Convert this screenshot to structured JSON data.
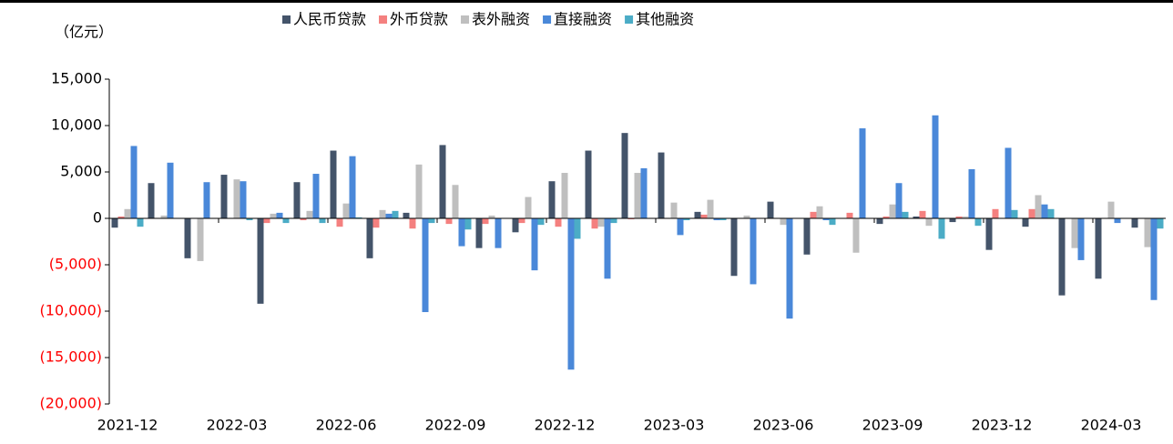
{
  "chart_data": {
    "type": "bar",
    "unit_label": "（亿元）",
    "categories": [
      "2021-12",
      null,
      null,
      "2022-03",
      null,
      null,
      "2022-06",
      null,
      null,
      "2022-09",
      null,
      null,
      "2022-12",
      null,
      null,
      "2023-03",
      null,
      null,
      "2023-06",
      null,
      null,
      "2023-09",
      null,
      null,
      "2023-12",
      null,
      null,
      "2024-03",
      null
    ],
    "series": [
      {
        "name": "人民币贷款",
        "color": "#44546a",
        "values": [
          -1000,
          3800,
          -4300,
          4700,
          -9200,
          3900,
          7300,
          -4300,
          600,
          7900,
          -3200,
          -1500,
          4000,
          7300,
          9200,
          7100,
          700,
          -6200,
          1800,
          -3900,
          0,
          -600,
          200,
          -400,
          -3400,
          -900,
          -8300,
          -6500,
          -1000
        ]
      },
      {
        "name": "外币贷款",
        "color": "#f4807f",
        "values": [
          200,
          0,
          0,
          0,
          -500,
          -200,
          -900,
          -1000,
          -1100,
          -600,
          -600,
          -500,
          -900,
          -1100,
          -100,
          0,
          400,
          0,
          0,
          700,
          600,
          200,
          800,
          200,
          1000,
          1000,
          0,
          0,
          0
        ]
      },
      {
        "name": "表外融资",
        "color": "#bfbfbf",
        "values": [
          1000,
          300,
          -4600,
          4200,
          500,
          800,
          1600,
          900,
          5800,
          3600,
          300,
          2300,
          4900,
          -900,
          4900,
          1700,
          2000,
          300,
          -700,
          1300,
          -3700,
          1500,
          -800,
          200,
          0,
          2500,
          -3200,
          1800,
          -3100
        ]
      },
      {
        "name": "直接融资",
        "color": "#4a88d9",
        "values": [
          7800,
          6000,
          3900,
          4000,
          600,
          4800,
          6700,
          500,
          -10100,
          -3000,
          -3200,
          -5600,
          -16300,
          -6500,
          5400,
          -1800,
          -200,
          -7100,
          -10800,
          -200,
          9700,
          3800,
          11100,
          5300,
          7600,
          1500,
          -4500,
          -500,
          -8800
        ]
      },
      {
        "name": "其他融资",
        "color": "#4bacc6",
        "values": [
          -900,
          0,
          0,
          -200,
          -500,
          -500,
          100,
          800,
          -500,
          -1200,
          0,
          -700,
          -2200,
          -500,
          0,
          -200,
          -200,
          0,
          0,
          -700,
          0,
          700,
          -2200,
          -800,
          900,
          1000,
          0,
          0,
          -1100
        ]
      }
    ],
    "ylim": [
      -20000,
      15000
    ],
    "yticks": [
      {
        "value": -20000,
        "label": "(20,000)"
      },
      {
        "value": -15000,
        "label": "(15,000)"
      },
      {
        "value": -10000,
        "label": "(10,000)"
      },
      {
        "value": -5000,
        "label": "(5,000)"
      },
      0,
      {
        "value": 5000,
        "label": "5,000"
      },
      {
        "value": 10000,
        "label": "10,000"
      },
      {
        "value": 15000,
        "label": "15,000"
      }
    ],
    "negative_tick_color": "#ff0000",
    "legend": "top",
    "grid": false
  }
}
